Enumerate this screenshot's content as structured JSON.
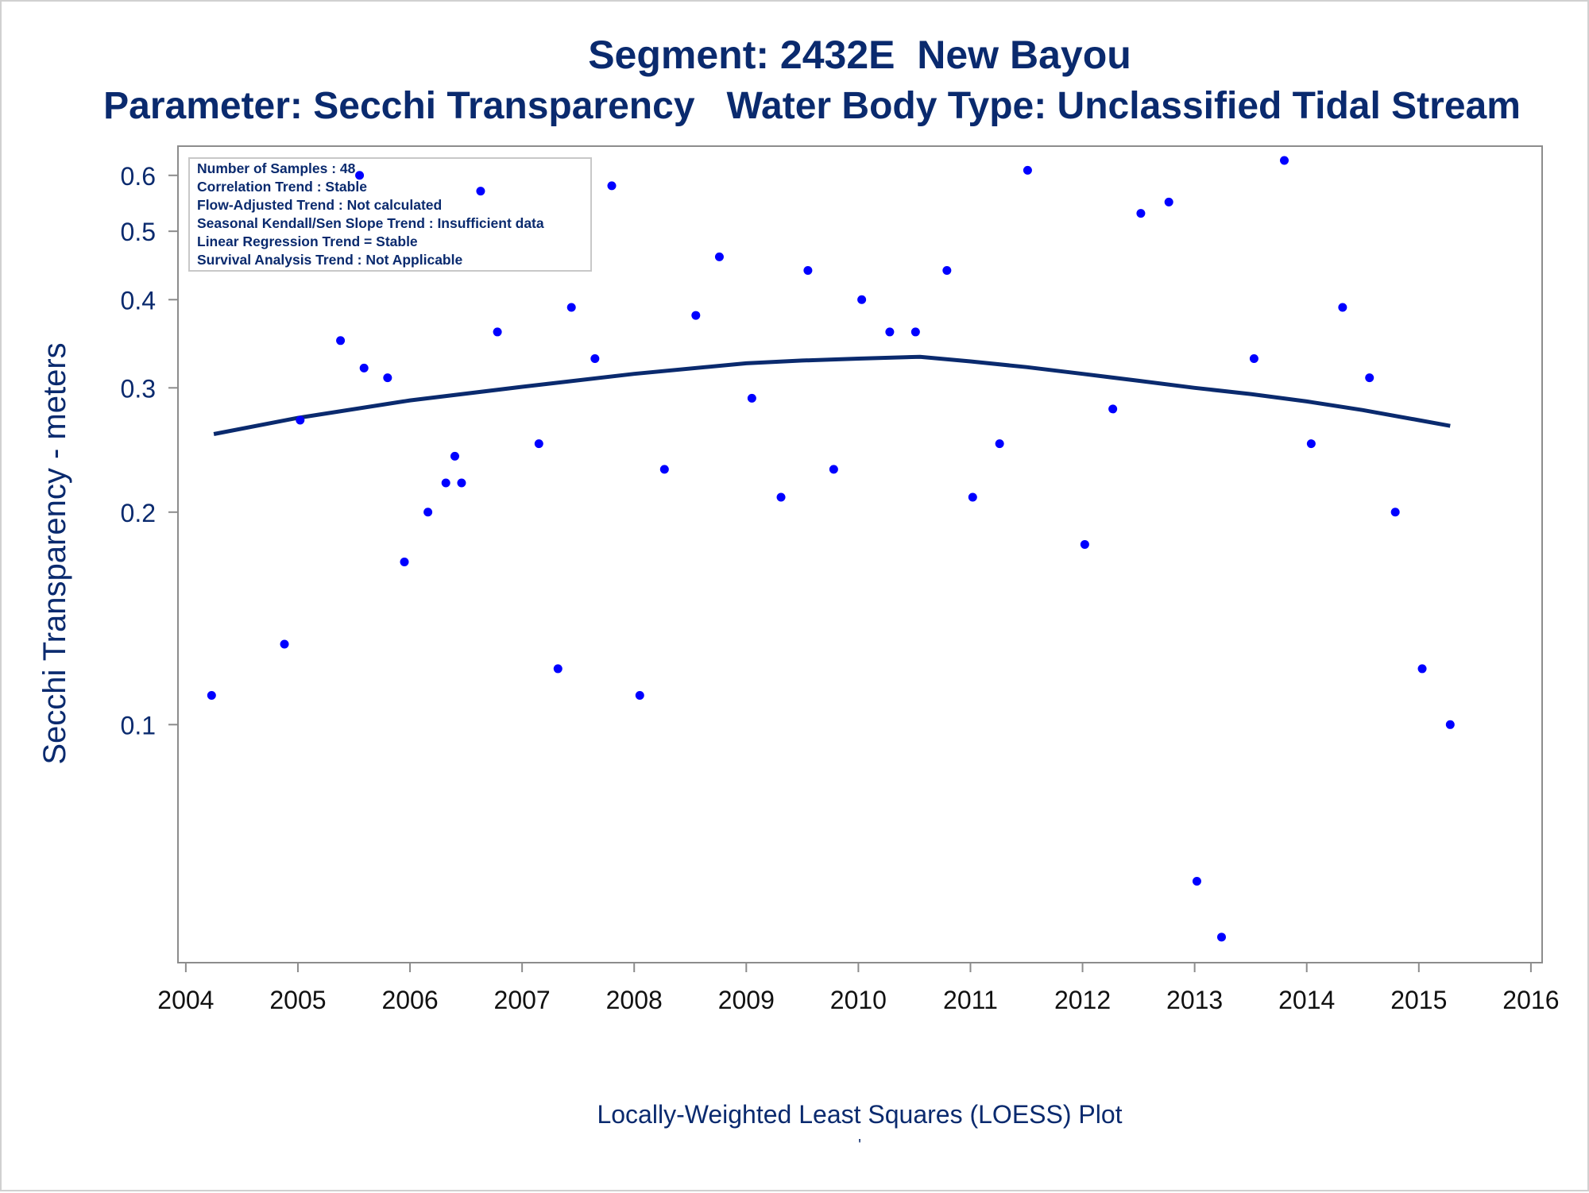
{
  "chart_data": {
    "type": "scatter",
    "title": "Segment: 2432E  New Bayou",
    "subtitle": "Parameter: Secchi Transparency   Water Body Type: Unclassified Tidal Stream",
    "xlabel": "Locally-Weighted Least Squares (LOESS) Plot",
    "ylabel": "Secchi Transparency - meters",
    "footnote": "'",
    "y_scale": "log",
    "xlim": [
      2003.93,
      2016.1
    ],
    "ylim": [
      0.046,
      0.66
    ],
    "x_ticks": [
      "2004",
      "2005",
      "2006",
      "2007",
      "2008",
      "2009",
      "2010",
      "2011",
      "2012",
      "2013",
      "2014",
      "2015",
      "2016"
    ],
    "y_ticks": [
      "0.1",
      "0.2",
      "0.3",
      "0.4",
      "0.5",
      "0.6"
    ],
    "grid": false,
    "legend": "none",
    "colors": {
      "points": "#0000ff",
      "line": "#0a2a6e",
      "text": "#0a2a6e"
    },
    "annotations": [
      "Number of Samples : 48",
      "Correlation Trend : Stable",
      "Flow-Adjusted Trend : Not calculated",
      "Seasonal Kendall/Sen Slope Trend : Insufficient data",
      "Linear Regression Trend = Stable",
      "Survival Analysis Trend : Not Applicable"
    ],
    "series": [
      {
        "kind": "points",
        "points": [
          {
            "x": 2004.23,
            "y": 0.11
          },
          {
            "x": 2004.88,
            "y": 0.13
          },
          {
            "x": 2005.02,
            "y": 0.27
          },
          {
            "x": 2005.38,
            "y": 0.35
          },
          {
            "x": 2005.55,
            "y": 0.6
          },
          {
            "x": 2005.59,
            "y": 0.32
          },
          {
            "x": 2005.8,
            "y": 0.31
          },
          {
            "x": 2005.95,
            "y": 0.17
          },
          {
            "x": 2006.16,
            "y": 0.2
          },
          {
            "x": 2006.32,
            "y": 0.22
          },
          {
            "x": 2006.4,
            "y": 0.24
          },
          {
            "x": 2006.46,
            "y": 0.22
          },
          {
            "x": 2006.63,
            "y": 0.57
          },
          {
            "x": 2006.78,
            "y": 0.36
          },
          {
            "x": 2007.15,
            "y": 0.25
          },
          {
            "x": 2007.32,
            "y": 0.12
          },
          {
            "x": 2007.44,
            "y": 0.39
          },
          {
            "x": 2007.65,
            "y": 0.33
          },
          {
            "x": 2007.8,
            "y": 0.58
          },
          {
            "x": 2008.05,
            "y": 0.11
          },
          {
            "x": 2008.27,
            "y": 0.23
          },
          {
            "x": 2008.55,
            "y": 0.38
          },
          {
            "x": 2008.76,
            "y": 0.46
          },
          {
            "x": 2009.05,
            "y": 0.29
          },
          {
            "x": 2009.31,
            "y": 0.21
          },
          {
            "x": 2009.55,
            "y": 0.44
          },
          {
            "x": 2009.78,
            "y": 0.23
          },
          {
            "x": 2010.03,
            "y": 0.4
          },
          {
            "x": 2010.28,
            "y": 0.36
          },
          {
            "x": 2010.51,
            "y": 0.36
          },
          {
            "x": 2010.79,
            "y": 0.44
          },
          {
            "x": 2011.02,
            "y": 0.21
          },
          {
            "x": 2011.26,
            "y": 0.25
          },
          {
            "x": 2011.51,
            "y": 0.61
          },
          {
            "x": 2012.02,
            "y": 0.18
          },
          {
            "x": 2012.27,
            "y": 0.28
          },
          {
            "x": 2012.52,
            "y": 0.53
          },
          {
            "x": 2012.77,
            "y": 0.55
          },
          {
            "x": 2013.02,
            "y": 0.06
          },
          {
            "x": 2013.24,
            "y": 0.05
          },
          {
            "x": 2013.53,
            "y": 0.33
          },
          {
            "x": 2013.8,
            "y": 0.63
          },
          {
            "x": 2014.04,
            "y": 0.25
          },
          {
            "x": 2014.32,
            "y": 0.39
          },
          {
            "x": 2014.56,
            "y": 0.31
          },
          {
            "x": 2014.79,
            "y": 0.2
          },
          {
            "x": 2015.03,
            "y": 0.12
          },
          {
            "x": 2015.28,
            "y": 0.1
          }
        ]
      },
      {
        "kind": "line",
        "points": [
          {
            "x": 2004.25,
            "y": 0.258
          },
          {
            "x": 2005.0,
            "y": 0.272
          },
          {
            "x": 2006.0,
            "y": 0.288
          },
          {
            "x": 2007.0,
            "y": 0.301
          },
          {
            "x": 2008.0,
            "y": 0.314
          },
          {
            "x": 2009.0,
            "y": 0.325
          },
          {
            "x": 2009.5,
            "y": 0.328
          },
          {
            "x": 2010.0,
            "y": 0.33
          },
          {
            "x": 2010.55,
            "y": 0.332
          },
          {
            "x": 2011.0,
            "y": 0.327
          },
          {
            "x": 2011.5,
            "y": 0.321
          },
          {
            "x": 2012.0,
            "y": 0.314
          },
          {
            "x": 2012.5,
            "y": 0.307
          },
          {
            "x": 2013.0,
            "y": 0.3
          },
          {
            "x": 2013.5,
            "y": 0.294
          },
          {
            "x": 2014.0,
            "y": 0.287
          },
          {
            "x": 2014.5,
            "y": 0.279
          },
          {
            "x": 2015.0,
            "y": 0.27
          },
          {
            "x": 2015.28,
            "y": 0.265
          }
        ]
      }
    ]
  }
}
